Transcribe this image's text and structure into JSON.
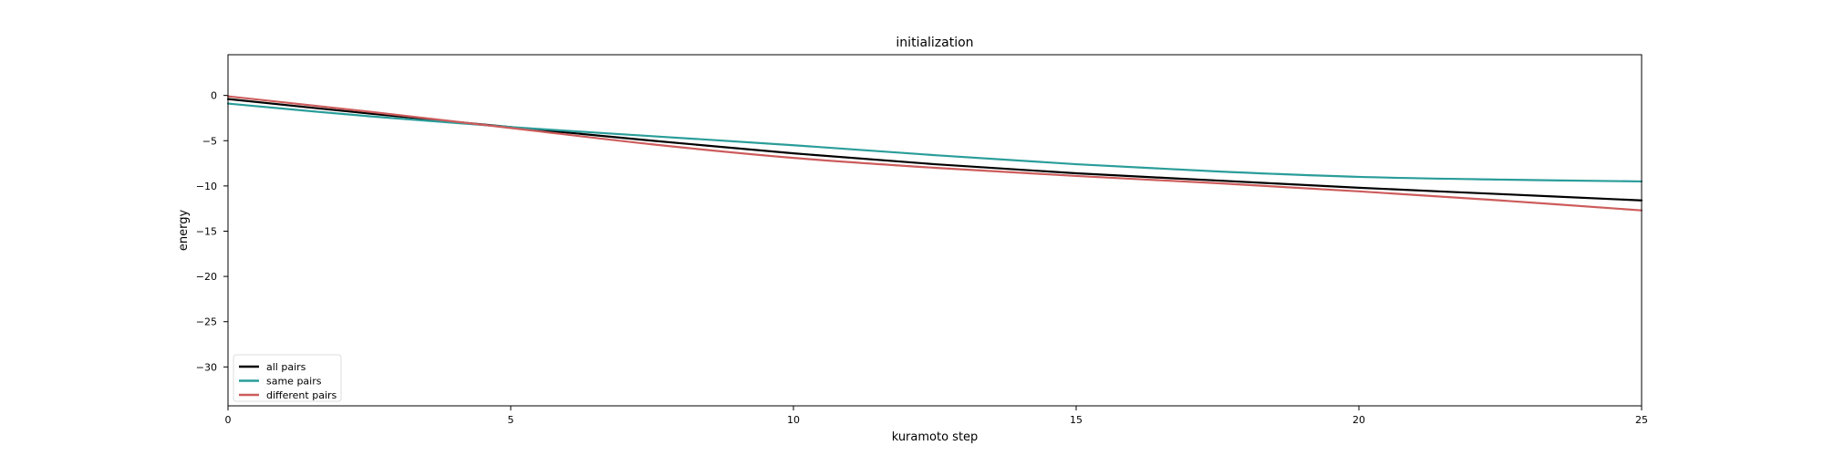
{
  "chart_data": {
    "type": "line",
    "title": "initialization",
    "xlabel": "kuramoto step",
    "ylabel": "energy",
    "xlim": [
      0,
      25
    ],
    "ylim": [
      -34.3,
      4.5
    ],
    "xticks": [
      0,
      5,
      10,
      15,
      20,
      25
    ],
    "yticks": [
      0,
      -5,
      -10,
      -15,
      -20,
      -25,
      -30
    ],
    "ytick_labels": [
      "0",
      "−5",
      "−10",
      "−15",
      "−20",
      "−25",
      "−30"
    ],
    "grid": false,
    "legend_position": "bottom-left",
    "x": [
      0,
      2.5,
      5,
      7.5,
      10,
      12.5,
      15,
      17.5,
      20,
      22.5,
      25
    ],
    "series": [
      {
        "name": "all pairs",
        "color": "#000000",
        "values": [
          -0.4,
          -2.0,
          -3.5,
          -5.0,
          -6.4,
          -7.6,
          -8.6,
          -9.4,
          -10.2,
          -10.9,
          -11.6
        ]
      },
      {
        "name": "same pairs",
        "color": "#2a9d9a",
        "values": [
          -0.9,
          -2.3,
          -3.5,
          -4.5,
          -5.5,
          -6.6,
          -7.6,
          -8.4,
          -9.0,
          -9.3,
          -9.5
        ]
      },
      {
        "name": "different pairs",
        "color": "#cd5c5c",
        "values": [
          -0.1,
          -1.8,
          -3.6,
          -5.4,
          -6.9,
          -8.0,
          -8.9,
          -9.7,
          -10.6,
          -11.6,
          -12.7
        ]
      }
    ]
  }
}
